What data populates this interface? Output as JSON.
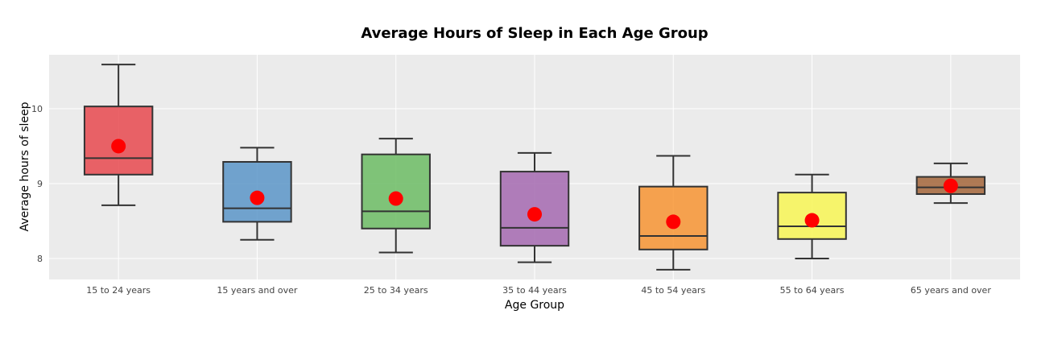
{
  "chart_data": {
    "type": "box",
    "title": "Average Hours of Sleep in Each Age Group",
    "xlabel": "Age Group",
    "ylabel": "Average hours of sleep",
    "ylim": [
      7.72,
      10.72
    ],
    "yticks": [
      8,
      9,
      10
    ],
    "grid": true,
    "legend": "none",
    "categories": [
      "15 to 24 years",
      "15 years and over",
      "25 to 34 years",
      "35 to 44 years",
      "45 to 54 years",
      "55 to 64 years",
      "65 years and over"
    ],
    "boxes": [
      {
        "min": 8.71,
        "q1": 9.12,
        "median": 9.34,
        "q3": 10.03,
        "max": 10.59,
        "mean": 9.5,
        "color": "#e8494f"
      },
      {
        "min": 8.25,
        "q1": 8.49,
        "median": 8.67,
        "q3": 9.29,
        "max": 9.48,
        "mean": 8.81,
        "color": "#5b95c8"
      },
      {
        "min": 8.08,
        "q1": 8.4,
        "median": 8.63,
        "q3": 9.39,
        "max": 9.6,
        "mean": 8.8,
        "color": "#6cbc64"
      },
      {
        "min": 7.95,
        "q1": 8.17,
        "median": 8.41,
        "q3": 9.16,
        "max": 9.41,
        "mean": 8.59,
        "color": "#a469b0"
      },
      {
        "min": 7.85,
        "q1": 8.12,
        "median": 8.3,
        "q3": 8.96,
        "max": 9.37,
        "mean": 8.49,
        "color": "#f79433"
      },
      {
        "min": 8.0,
        "q1": 8.26,
        "median": 8.43,
        "q3": 8.88,
        "max": 9.12,
        "mean": 8.51,
        "color": "#f8f655"
      },
      {
        "min": 8.74,
        "q1": 8.86,
        "median": 8.95,
        "q3": 9.09,
        "max": 9.27,
        "mean": 8.97,
        "color": "#a3653a"
      }
    ],
    "mean_marker_color": "#ff0000",
    "box_line_color": "#333333",
    "plot_bg": "#ebebeb"
  }
}
